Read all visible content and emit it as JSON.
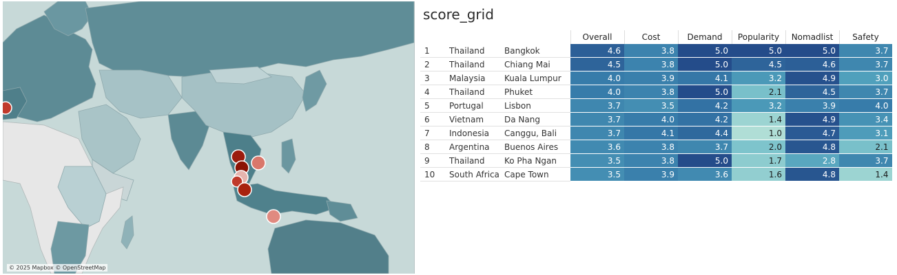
{
  "map": {
    "attribution": "© 2025 Mapbox © OpenStreetMap",
    "markers": [
      {
        "city": "Lisbon",
        "color": "#c0392b"
      },
      {
        "city": "Chiang Mai",
        "color": "#9b1c0e"
      },
      {
        "city": "Bangkok",
        "color": "#8b1205"
      },
      {
        "city": "Da Nang",
        "color": "#d9776b"
      },
      {
        "city": "Phuket",
        "color": "#e6b4ae"
      },
      {
        "city": "Ko Pha Ngan",
        "color": "#c0392b"
      },
      {
        "city": "Kuala Lumpur",
        "color": "#a8220f"
      },
      {
        "city": "Canggu, Bali",
        "color": "#e08a80"
      }
    ]
  },
  "title": "score_grid",
  "columns": [
    "Overall",
    "Cost",
    "Demand",
    "Popularity",
    "Nomadlist",
    "Safety"
  ],
  "rows": [
    {
      "rank": "1",
      "country": "Thailand",
      "city": "Bangkok",
      "scores": [
        "4.6",
        "3.8",
        "5.0",
        "5.0",
        "5.0",
        "3.7"
      ]
    },
    {
      "rank": "2",
      "country": "Thailand",
      "city": "Chiang Mai",
      "scores": [
        "4.5",
        "3.8",
        "5.0",
        "4.5",
        "4.6",
        "3.7"
      ]
    },
    {
      "rank": "3",
      "country": "Malaysia",
      "city": "Kuala Lumpur",
      "scores": [
        "4.0",
        "3.9",
        "4.1",
        "3.2",
        "4.9",
        "3.0"
      ]
    },
    {
      "rank": "4",
      "country": "Thailand",
      "city": "Phuket",
      "scores": [
        "4.0",
        "3.8",
        "5.0",
        "2.1",
        "4.5",
        "3.7"
      ]
    },
    {
      "rank": "5",
      "country": "Portugal",
      "city": "Lisbon",
      "scores": [
        "3.7",
        "3.5",
        "4.2",
        "3.2",
        "3.9",
        "4.0"
      ]
    },
    {
      "rank": "6",
      "country": "Vietnam",
      "city": "Da Nang",
      "scores": [
        "3.7",
        "4.0",
        "4.2",
        "1.4",
        "4.9",
        "3.4"
      ]
    },
    {
      "rank": "7",
      "country": "Indonesia",
      "city": "Canggu, Bali",
      "scores": [
        "3.7",
        "4.1",
        "4.4",
        "1.0",
        "4.7",
        "3.1"
      ]
    },
    {
      "rank": "8",
      "country": "Argentina",
      "city": "Buenos Aires",
      "scores": [
        "3.6",
        "3.8",
        "3.7",
        "2.0",
        "4.8",
        "2.1"
      ]
    },
    {
      "rank": "9",
      "country": "Thailand",
      "city": "Ko Pha Ngan",
      "scores": [
        "3.5",
        "3.8",
        "5.0",
        "1.7",
        "2.8",
        "3.7"
      ]
    },
    {
      "rank": "10",
      "country": "South Africa",
      "city": "Cape Town",
      "scores": [
        "3.5",
        "3.9",
        "3.6",
        "1.6",
        "4.8",
        "1.4"
      ]
    }
  ]
}
